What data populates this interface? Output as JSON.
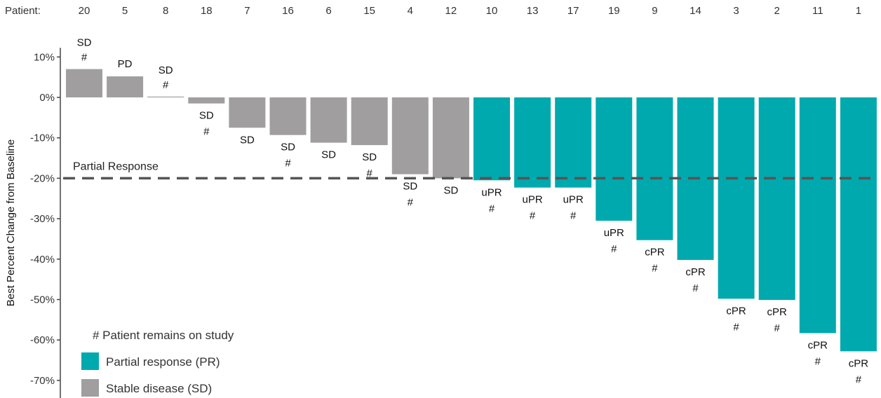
{
  "chart_data": {
    "type": "bar",
    "title": "",
    "xlabel": "",
    "ylabel": "Best Percent Change from Baseline",
    "patient_header": "Patient:",
    "categories": [
      "20",
      "5",
      "8",
      "18",
      "7",
      "16",
      "6",
      "15",
      "4",
      "12",
      "10",
      "13",
      "17",
      "19",
      "9",
      "14",
      "3",
      "2",
      "11",
      "1"
    ],
    "values": [
      7,
      5.2,
      0.2,
      -1.5,
      -7.5,
      -9.3,
      -11.2,
      -11.8,
      -19,
      -20,
      -20.5,
      -22.3,
      -22.3,
      -30.5,
      -35.3,
      -40.2,
      -49.8,
      -50.1,
      -58.3,
      -62.8
    ],
    "response": [
      "SD",
      "PD",
      "SD",
      "SD",
      "SD",
      "SD",
      "SD",
      "SD",
      "SD",
      "SD",
      "uPR",
      "uPR",
      "uPR",
      "uPR",
      "cPR",
      "cPR",
      "cPR",
      "cPR",
      "cPR",
      "cPR"
    ],
    "on_study": [
      true,
      false,
      true,
      true,
      false,
      true,
      false,
      true,
      true,
      false,
      true,
      true,
      true,
      true,
      true,
      true,
      true,
      true,
      true,
      true
    ],
    "group": [
      "SD",
      "SD",
      "SD",
      "SD",
      "SD",
      "SD",
      "SD",
      "SD",
      "SD",
      "SD",
      "PR",
      "PR",
      "PR",
      "PR",
      "PR",
      "PR",
      "PR",
      "PR",
      "PR",
      "PR"
    ],
    "yticks": [
      10,
      0,
      -10,
      -20,
      -30,
      -40,
      -50,
      -60,
      -70
    ],
    "ytick_labels": [
      "10%",
      "0%",
      "-10%",
      "-20%",
      "-30%",
      "-40%",
      "-50%",
      "-60%",
      "-70%"
    ],
    "ylim": [
      -73,
      14
    ],
    "reference_line": {
      "value": -20,
      "label": "Partial Response"
    },
    "on_study_marker": "#",
    "grid": false,
    "colors": {
      "PR": "#00A9AE",
      "SD": "#A09E9E",
      "refline": "#555555"
    },
    "legend": {
      "placement": "bottom-left",
      "note": "# Patient remains on study",
      "items": [
        {
          "key": "PR",
          "label": "Partial response (PR)"
        },
        {
          "key": "SD",
          "label": "Stable disease (SD)"
        }
      ]
    }
  }
}
